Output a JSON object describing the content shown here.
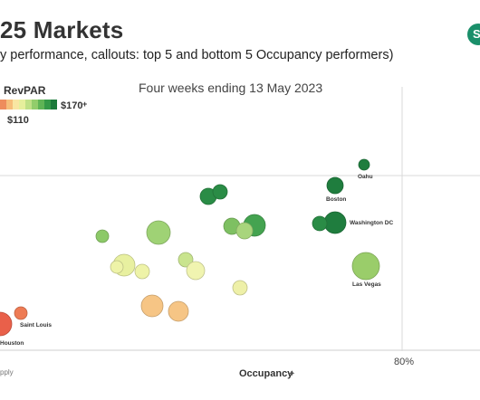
{
  "title": "25 Markets",
  "subtitle": "y performance, callouts: top 5 and bottom 5 Occupancy performers)",
  "logo_text": "S",
  "period": "Four weeks ending 13 May 2023",
  "legend": {
    "title": "RevPAR",
    "max_label": "$170",
    "max_marker": "+",
    "mid_label": "$110",
    "colors": [
      "#ee8c5c",
      "#f6be7a",
      "#f8e6a2",
      "#e6ef9c",
      "#bfe086",
      "#92cd6b",
      "#5fb455",
      "#349947",
      "#1b7a3a"
    ]
  },
  "footer_note": "pply",
  "chart_data": {
    "type": "scatter",
    "xlabel": "Occupancy",
    "xlabel_icon": "pin-icon",
    "ylabel": "",
    "x_ticks": [
      "80%"
    ],
    "grid": "reference lines",
    "size_encoding": "bubble size",
    "color_encoding": "RevPAR",
    "points": [
      {
        "label": "Oahu",
        "color": "#1f7d3e",
        "size": "small"
      },
      {
        "label": "Boston",
        "color": "#1f7d3e",
        "size": "medium"
      },
      {
        "label": "Washington DC",
        "color": "#1f7d3e",
        "size": "large"
      },
      {
        "label": "Las Vegas",
        "color": "#9acd6a",
        "size": "large"
      },
      {
        "label": "Saint Louis",
        "color": "#ee7b54",
        "size": "small"
      },
      {
        "label": "Houston",
        "color": "#e9604a",
        "size": "large"
      },
      {
        "label": "",
        "color": "#2a8c46",
        "size": "medium"
      },
      {
        "label": "",
        "color": "#2a8c46",
        "size": "medium"
      },
      {
        "label": "",
        "color": "#44a350",
        "size": "large"
      },
      {
        "label": "",
        "color": "#7ec062",
        "size": "medium"
      },
      {
        "label": "",
        "color": "#a8d57c",
        "size": "medium"
      },
      {
        "label": "",
        "color": "#8cc968",
        "size": "small"
      },
      {
        "label": "",
        "color": "#2a8c46",
        "size": "medium"
      },
      {
        "label": "",
        "color": "#9fd275",
        "size": "large"
      },
      {
        "label": "",
        "color": "#e8f0a0",
        "size": "large"
      },
      {
        "label": "",
        "color": "#eef3a8",
        "size": "small"
      },
      {
        "label": "",
        "color": "#eef3a8",
        "size": "medium"
      },
      {
        "label": "",
        "color": "#c9e48e",
        "size": "medium"
      },
      {
        "label": "",
        "color": "#f0f4b0",
        "size": "medium"
      },
      {
        "label": "",
        "color": "#eef0a8",
        "size": "medium"
      },
      {
        "label": "",
        "color": "#f6c585",
        "size": "large"
      },
      {
        "label": "",
        "color": "#f6c585",
        "size": "large"
      }
    ]
  }
}
